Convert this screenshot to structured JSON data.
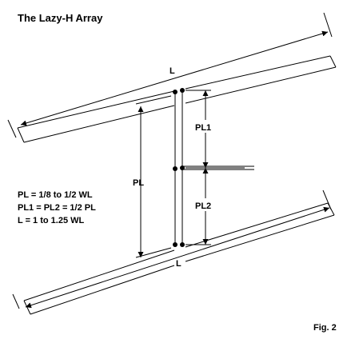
{
  "title": "The Lazy-H Array",
  "figure_label": "Fig. 2",
  "dimensions": {
    "top_element": "L",
    "bottom_element": "L",
    "vertical_spacing": "PL",
    "upper_phase_line": "PL1",
    "lower_phase_line": "PL2"
  },
  "notes": [
    "PL = 1/8 to 1/2 WL",
    "PL1 = PL2 = 1/2 PL",
    "L = 1 to 1.25 WL"
  ]
}
